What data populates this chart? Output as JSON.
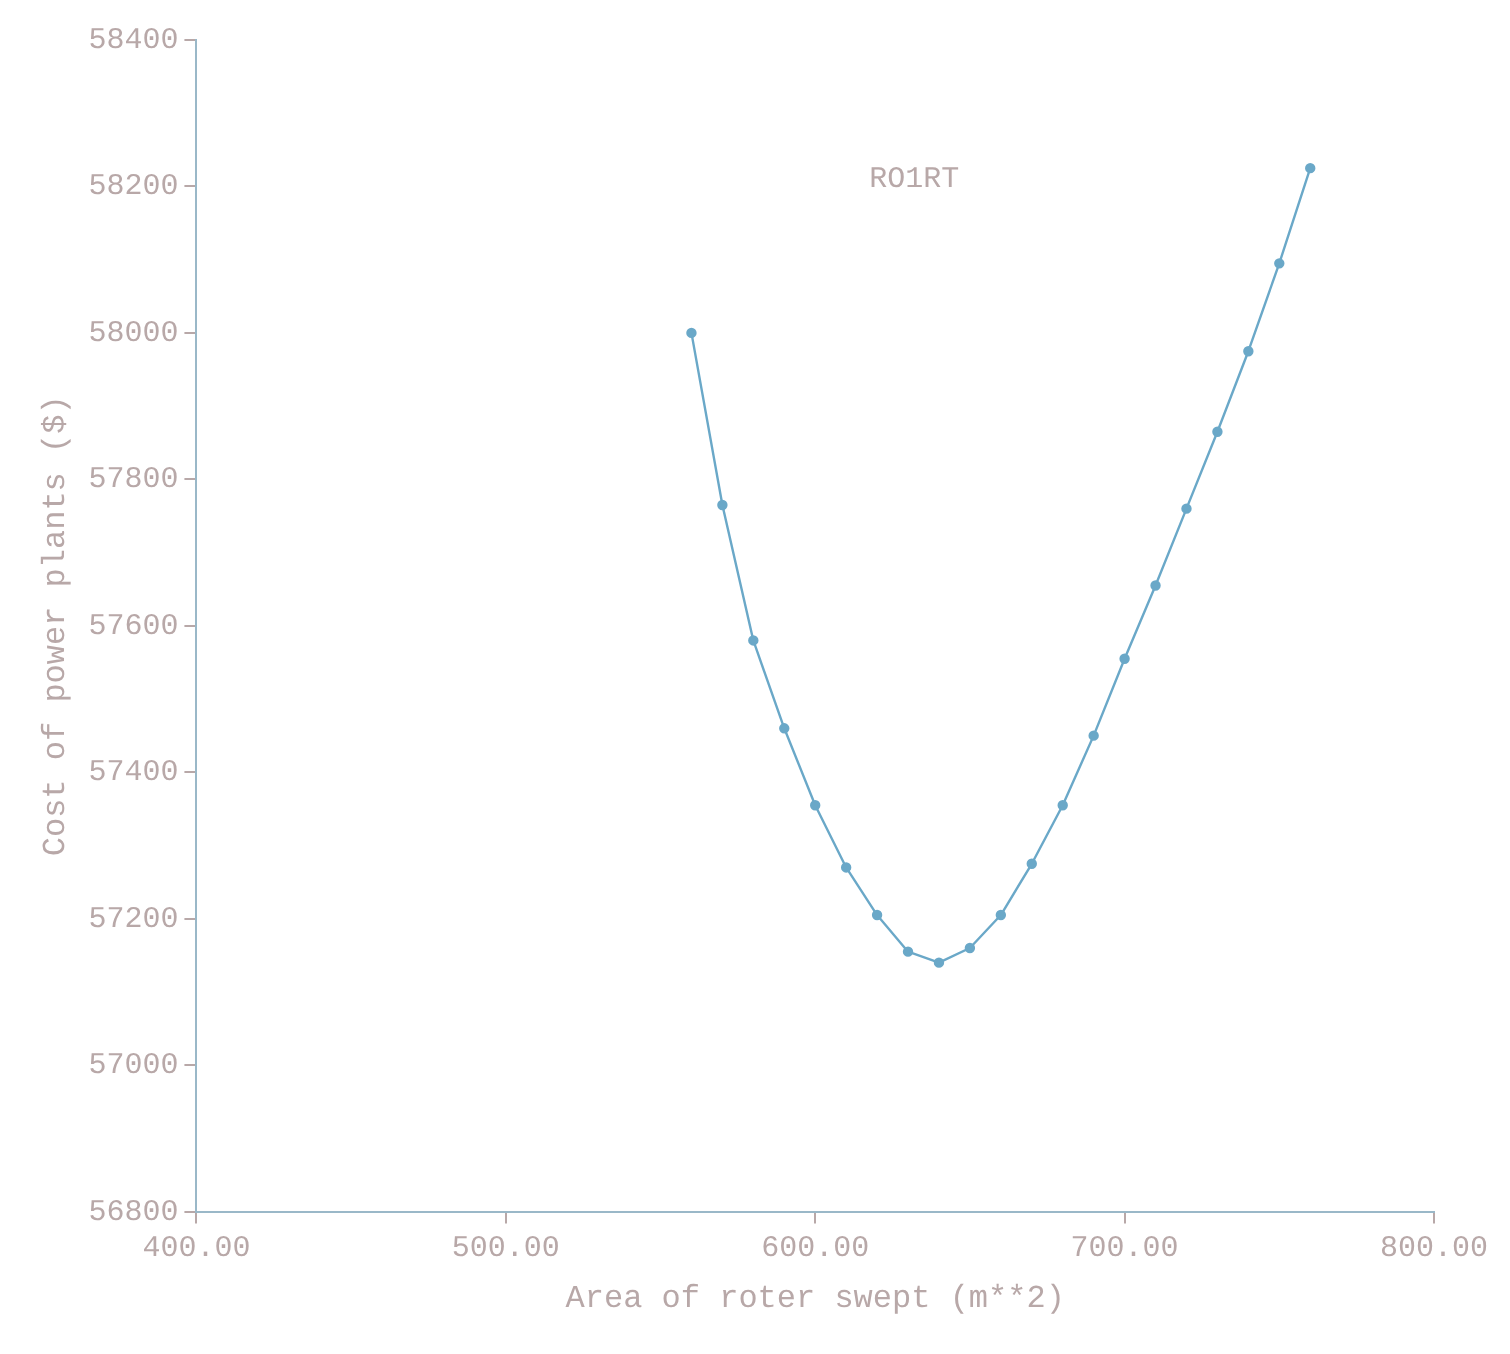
{
  "chart_data": {
    "type": "line",
    "title": "RO1RT",
    "xlabel": "Area of roter swept (m**2)",
    "ylabel": "Cost of power plants ($)",
    "x": [
      560,
      570,
      580,
      590,
      600,
      610,
      620,
      630,
      640,
      650,
      660,
      670,
      680,
      690,
      700,
      710,
      720,
      730,
      740,
      750,
      760
    ],
    "series": [
      {
        "color": "#6aa8c8",
        "values": [
          58000,
          57765,
          57580,
          57460,
          57355,
          57270,
          57205,
          57155,
          57140,
          57160,
          57205,
          57275,
          57355,
          57450,
          57555,
          57655,
          57760,
          57865,
          57975,
          58095,
          58225
        ]
      }
    ],
    "xlim": [
      400,
      800
    ],
    "xticks": [
      {
        "value": 400,
        "label": "400.00"
      },
      {
        "value": 500,
        "label": "500.00"
      },
      {
        "value": 600,
        "label": "600.00"
      },
      {
        "value": 700,
        "label": "700.00"
      },
      {
        "value": 800,
        "label": "800.00"
      }
    ],
    "ylim": [
      56800,
      58400
    ],
    "yticks": [
      56800,
      57000,
      57200,
      57400,
      57600,
      57800,
      58000,
      58200,
      58400
    ],
    "grid": false,
    "legend": false,
    "marker": "circle",
    "line_style": "solid"
  }
}
